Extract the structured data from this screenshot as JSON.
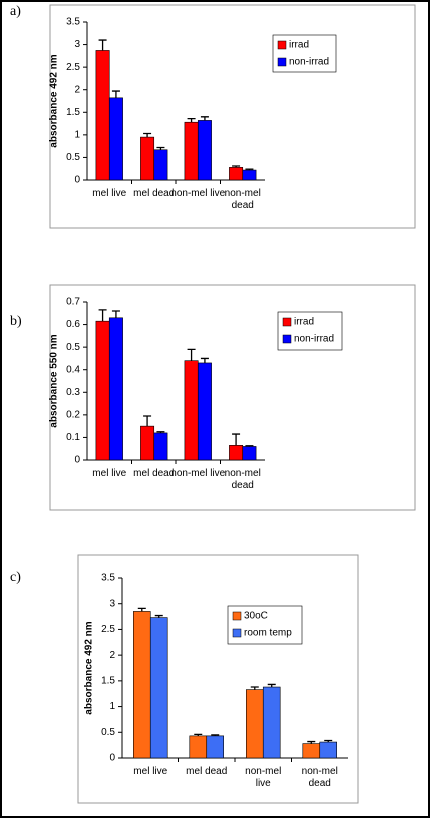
{
  "chart_data": [
    {
      "type": "bar",
      "label": "a)",
      "ylabel": "absorbance 492 nm",
      "categories": [
        "mel live",
        "mel dead",
        "non-mel live",
        "non-mel dead"
      ],
      "ylim": [
        0,
        3.5
      ],
      "yticks": [
        0,
        0.5,
        1,
        1.5,
        2,
        2.5,
        3,
        3.5
      ],
      "grid": false,
      "legend": "upper right",
      "series": [
        {
          "name": "irrad",
          "color": "#ff0000",
          "values": [
            2.87,
            0.95,
            1.28,
            0.28
          ],
          "error": [
            0.23,
            0.08,
            0.08,
            0.03
          ]
        },
        {
          "name": "non-irrad",
          "color": "#0000ff",
          "values": [
            1.82,
            0.67,
            1.32,
            0.22
          ],
          "error": [
            0.15,
            0.05,
            0.08,
            0.02
          ]
        }
      ]
    },
    {
      "type": "bar",
      "label": "b)",
      "ylabel": "absorbance 550 nm",
      "categories": [
        "mel live",
        "mel dead",
        "non-mel live",
        "non-mel dead"
      ],
      "ylim": [
        0,
        0.7
      ],
      "yticks": [
        0,
        0.1,
        0.2,
        0.3,
        0.4,
        0.5,
        0.6,
        0.7
      ],
      "grid": false,
      "legend": "upper right",
      "series": [
        {
          "name": "irrad",
          "color": "#ff0000",
          "values": [
            0.615,
            0.15,
            0.44,
            0.065
          ],
          "error": [
            0.05,
            0.045,
            0.05,
            0.05
          ]
        },
        {
          "name": "non-irrad",
          "color": "#0000ff",
          "values": [
            0.63,
            0.12,
            0.43,
            0.06
          ],
          "error": [
            0.03,
            0.005,
            0.02,
            0.003
          ]
        }
      ]
    },
    {
      "type": "bar",
      "label": "c)",
      "ylabel": "absorbance 492 nm",
      "categories": [
        "mel live",
        "mel dead",
        "non-mel live",
        "non-mel dead"
      ],
      "ylim": [
        0,
        3.5
      ],
      "yticks": [
        0,
        0.5,
        1,
        1.5,
        2,
        2.5,
        3,
        3.5
      ],
      "grid": false,
      "legend": "upper right",
      "series": [
        {
          "name": "30oC",
          "color": "#ff6a13",
          "values": [
            2.85,
            0.43,
            1.33,
            0.28
          ],
          "error": [
            0.06,
            0.03,
            0.05,
            0.04
          ]
        },
        {
          "name": "room temp",
          "color": "#3d6ef5",
          "values": [
            2.73,
            0.43,
            1.38,
            0.31
          ],
          "error": [
            0.04,
            0.02,
            0.05,
            0.03
          ]
        }
      ]
    }
  ]
}
